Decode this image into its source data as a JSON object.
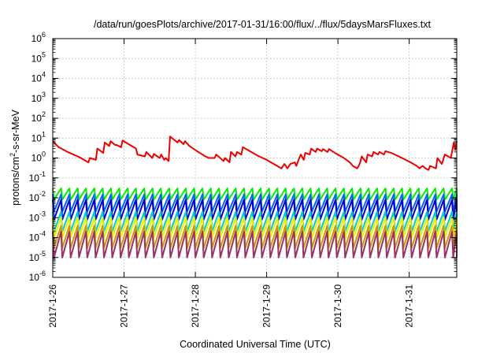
{
  "chart_data": {
    "type": "line",
    "title": "/data/run/goesPlots/archive/2017-01-31/16:00/flux/../flux/5daysMarsFluxes.txt",
    "xlabel": "Coordinated Universal Time (UTC)",
    "ylabel_main": "protons/cm",
    "ylabel_sup": "2",
    "ylabel_tail": "-s-sr-MeV",
    "yscale": "log",
    "ylim": [
      1e-06,
      1000000.0
    ],
    "y_ticks": [
      {
        "exp": "-6"
      },
      {
        "exp": "-5"
      },
      {
        "exp": "-4"
      },
      {
        "exp": "-3"
      },
      {
        "exp": "-2"
      },
      {
        "exp": "-1"
      },
      {
        "exp": "0"
      },
      {
        "exp": "1"
      },
      {
        "exp": "2"
      },
      {
        "exp": "3"
      },
      {
        "exp": "4"
      },
      {
        "exp": "5"
      },
      {
        "exp": "6"
      }
    ],
    "y_tick_base": "10",
    "xlim": [
      "2017-01-26 00:00",
      "2017-01-31 16:00"
    ],
    "x_ticks": [
      "2017-1-26",
      "2017-1-27",
      "2017-1-28",
      "2017-1-29",
      "2017-1-30",
      "2017-1-31"
    ],
    "grid": true,
    "legend": "none",
    "red_series": {
      "color": "#ee0000",
      "points": [
        [
          "2017-01-26 00:00",
          7.0
        ],
        [
          "2017-01-26 02:00",
          3.5
        ],
        [
          "2017-01-26 05:00",
          2.0
        ],
        [
          "2017-01-26 09:00",
          1.1
        ],
        [
          "2017-01-26 12:00",
          0.6
        ],
        [
          "2017-01-26 12:30",
          1.0
        ],
        [
          "2017-01-26 14:30",
          0.8
        ],
        [
          "2017-01-26 15:00",
          3.0
        ],
        [
          "2017-01-26 17:00",
          1.8
        ],
        [
          "2017-01-26 17:30",
          6.0
        ],
        [
          "2017-01-26 19:00",
          4.0
        ],
        [
          "2017-01-26 19:30",
          7.0
        ],
        [
          "2017-01-26 21:00",
          4.5
        ],
        [
          "2017-01-26 21:30",
          4.5
        ],
        [
          "2017-01-26 23:00",
          3.5
        ],
        [
          "2017-01-26 23:30",
          7.5
        ],
        [
          "2017-01-27 04:00",
          3.0
        ],
        [
          "2017-01-27 04:30",
          1.5
        ],
        [
          "2017-01-27 07:00",
          1.2
        ],
        [
          "2017-01-27 07:30",
          2.0
        ],
        [
          "2017-01-27 09:30",
          1.0
        ],
        [
          "2017-01-27 10:00",
          1.6
        ],
        [
          "2017-01-27 12:00",
          1.0
        ],
        [
          "2017-01-27 12:30",
          1.5
        ],
        [
          "2017-01-27 13:30",
          0.8
        ],
        [
          "2017-01-27 14:00",
          1.0
        ],
        [
          "2017-01-27 15:00",
          0.7
        ],
        [
          "2017-01-27 15:30",
          12.0
        ],
        [
          "2017-01-27 16:30",
          9.0
        ],
        [
          "2017-01-27 17:00",
          8.0
        ],
        [
          "2017-01-27 18:00",
          6.0
        ],
        [
          "2017-01-27 18:30",
          8.0
        ],
        [
          "2017-01-27 20:00",
          5.0
        ],
        [
          "2017-01-27 20:30",
          7.0
        ],
        [
          "2017-01-27 22:00",
          4.0
        ],
        [
          "2017-01-28 01:00",
          2.0
        ],
        [
          "2017-01-28 03:00",
          1.3
        ],
        [
          "2017-01-28 04:30",
          1.0
        ],
        [
          "2017-01-28 06:30",
          1.0
        ],
        [
          "2017-01-28 07:00",
          1.5
        ],
        [
          "2017-01-28 09:30",
          0.7
        ],
        [
          "2017-01-28 10:00",
          1.0
        ],
        [
          "2017-01-28 11:30",
          0.6
        ],
        [
          "2017-01-28 12:00",
          2.0
        ],
        [
          "2017-01-28 13:30",
          1.2
        ],
        [
          "2017-01-28 14:00",
          2.0
        ],
        [
          "2017-01-28 15:30",
          1.5
        ],
        [
          "2017-01-28 16:00",
          3.5
        ],
        [
          "2017-01-28 21:00",
          1.3
        ],
        [
          "2017-01-29 00:00",
          0.8
        ],
        [
          "2017-01-29 03:30",
          0.4
        ],
        [
          "2017-01-29 05:00",
          0.3
        ],
        [
          "2017-01-29 06:00",
          0.5
        ],
        [
          "2017-01-29 07:00",
          0.3
        ],
        [
          "2017-01-29 08:00",
          0.5
        ],
        [
          "2017-01-29 09:30",
          0.6
        ],
        [
          "2017-01-29 10:00",
          0.4
        ],
        [
          "2017-01-29 11:00",
          1.0
        ],
        [
          "2017-01-29 11:30",
          1.5
        ],
        [
          "2017-01-29 12:30",
          0.8
        ],
        [
          "2017-01-29 13:00",
          1.8
        ],
        [
          "2017-01-29 14:30",
          1.5
        ],
        [
          "2017-01-29 15:00",
          3.0
        ],
        [
          "2017-01-29 16:30",
          2.0
        ],
        [
          "2017-01-29 17:00",
          3.0
        ],
        [
          "2017-01-29 18:30",
          2.2
        ],
        [
          "2017-01-29 19:00",
          2.8
        ],
        [
          "2017-01-29 20:30",
          2.0
        ],
        [
          "2017-01-29 21:00",
          2.8
        ],
        [
          "2017-01-29 23:00",
          1.8
        ],
        [
          "2017-01-30 02:00",
          1.0
        ],
        [
          "2017-01-30 04:00",
          0.6
        ],
        [
          "2017-01-30 05:00",
          0.4
        ],
        [
          "2017-01-30 06:30",
          0.3
        ],
        [
          "2017-01-30 07:00",
          0.4
        ],
        [
          "2017-01-30 07:30",
          0.6
        ],
        [
          "2017-01-30 08:00",
          1.2
        ],
        [
          "2017-01-30 09:30",
          0.6
        ],
        [
          "2017-01-30 10:00",
          1.5
        ],
        [
          "2017-01-30 11:30",
          1.2
        ],
        [
          "2017-01-30 12:00",
          2.0
        ],
        [
          "2017-01-30 13:30",
          1.5
        ],
        [
          "2017-01-30 14:00",
          2.0
        ],
        [
          "2017-01-30 15:30",
          1.5
        ],
        [
          "2017-01-30 16:00",
          2.2
        ],
        [
          "2017-01-30 18:00",
          1.8
        ],
        [
          "2017-01-30 20:30",
          1.2
        ],
        [
          "2017-01-31 00:30",
          0.6
        ],
        [
          "2017-01-31 02:30",
          0.4
        ],
        [
          "2017-01-31 03:30",
          0.3
        ],
        [
          "2017-01-31 04:30",
          0.4
        ],
        [
          "2017-01-31 05:30",
          0.3
        ],
        [
          "2017-01-31 06:30",
          0.25
        ],
        [
          "2017-01-31 07:00",
          0.4
        ],
        [
          "2017-01-31 09:00",
          0.3
        ],
        [
          "2017-01-31 09:30",
          1.0
        ],
        [
          "2017-01-31 11:00",
          0.5
        ],
        [
          "2017-01-31 12:00",
          1.5
        ],
        [
          "2017-01-31 14:00",
          1.0
        ],
        [
          "2017-01-31 15:00",
          6.0
        ],
        [
          "2017-01-31 15:30",
          2.5
        ],
        [
          "2017-01-31 16:00",
          7.0
        ]
      ]
    },
    "periodic_series": {
      "start": "2017-01-26 00:00",
      "period_hours": 2.8,
      "series": [
        {
          "color": "#00ee00",
          "peak": 0.03,
          "trough": 0.008
        },
        {
          "color": "#0066ff",
          "peak": 0.015,
          "trough": 0.002
        },
        {
          "color": "#0000cc",
          "peak": 0.008,
          "trough": 0.0008
        },
        {
          "color": "#00cccc",
          "peak": 0.002,
          "trough": 0.0002
        },
        {
          "color": "#eeee00",
          "peak": 0.001,
          "trough": 0.0001
        },
        {
          "color": "#cc9900",
          "peak": 0.0004,
          "trough": 3e-05
        },
        {
          "color": "#993366",
          "peak": 0.0002,
          "trough": 1e-05
        }
      ]
    }
  }
}
